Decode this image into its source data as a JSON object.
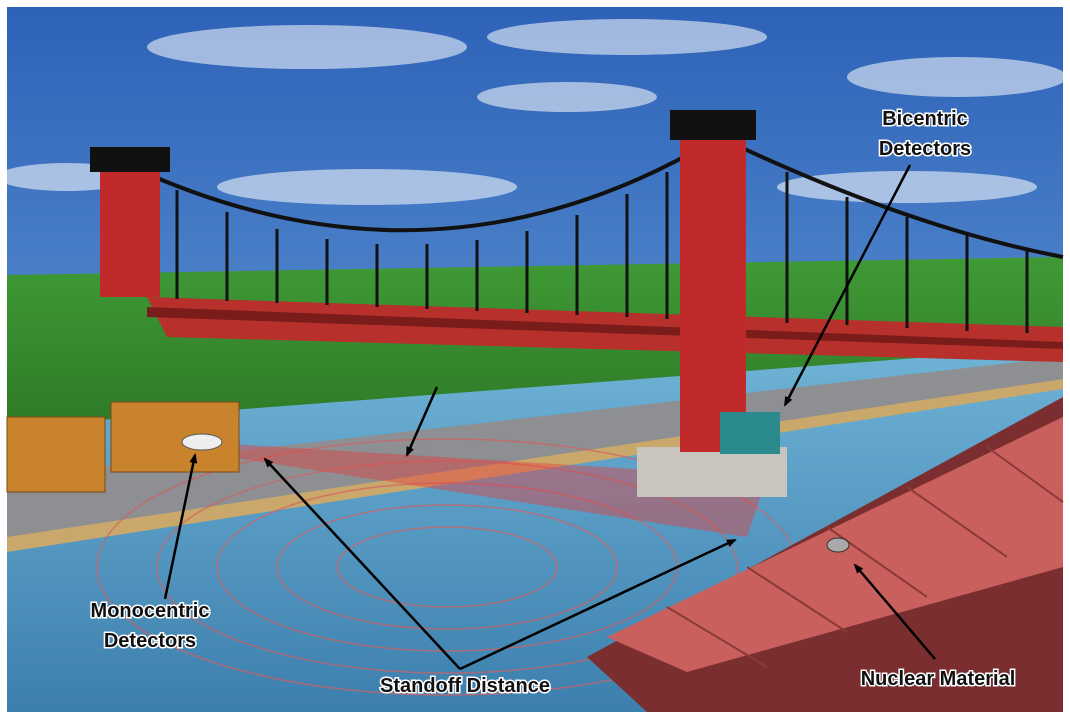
{
  "labels": [
    {
      "lines": [
        "Bicentric",
        "Detectors"
      ]
    },
    {
      "lines": [
        "Monocentric",
        "Detectors"
      ]
    },
    {
      "lines": [
        "Standoff Distance"
      ]
    },
    {
      "lines": [
        "Nuclear Material"
      ]
    }
  ]
}
